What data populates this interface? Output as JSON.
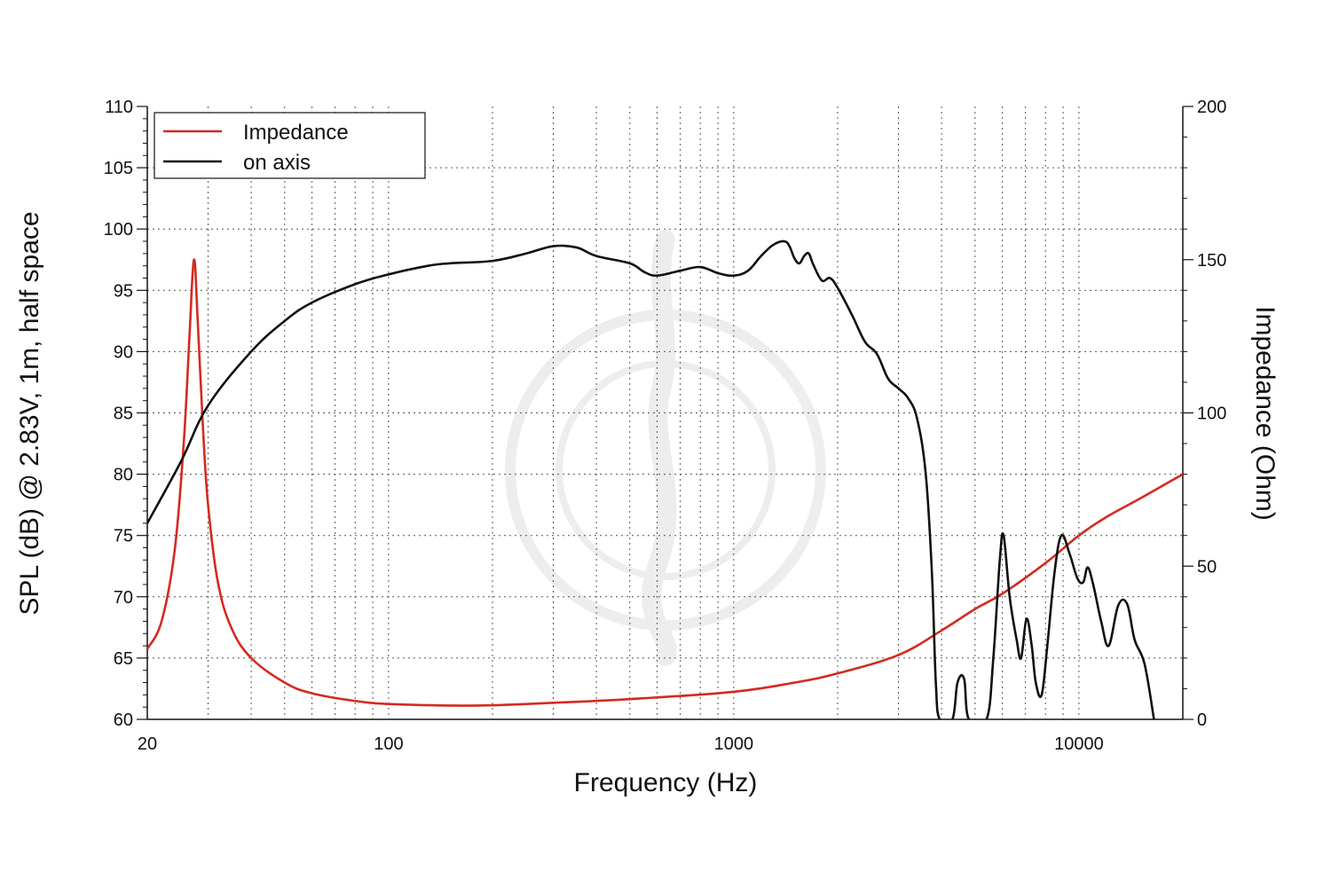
{
  "chart_data": {
    "type": "line",
    "xlabel": "Frequency (Hz)",
    "ylabel_left": "SPL (dB) @ 2.83V, 1m, half space",
    "ylabel_right": "Impedance (Ohm)",
    "x_scale": "log",
    "xlim": [
      20,
      20000
    ],
    "ylim_left": [
      60,
      110
    ],
    "ylim_right": [
      0,
      200
    ],
    "x_tick_labels": [
      "20",
      "100",
      "1000",
      "10000"
    ],
    "y_left_tick_labels": [
      "60",
      "65",
      "70",
      "75",
      "80",
      "85",
      "90",
      "95",
      "100",
      "105",
      "110"
    ],
    "y_right_tick_labels": [
      "0",
      "50",
      "100",
      "150",
      "200"
    ],
    "grid": true,
    "legend_position": "top-left",
    "series": [
      {
        "name": "Impedance",
        "axis": "right",
        "color": "#d42a1f",
        "points": [
          [
            20,
            23
          ],
          [
            22,
            32
          ],
          [
            24,
            55
          ],
          [
            25.5,
            90
          ],
          [
            26.5,
            125
          ],
          [
            27.3,
            150
          ],
          [
            28,
            130
          ],
          [
            29,
            95
          ],
          [
            30,
            70
          ],
          [
            32,
            45
          ],
          [
            35,
            30
          ],
          [
            40,
            20
          ],
          [
            50,
            12
          ],
          [
            60,
            8.5
          ],
          [
            80,
            6
          ],
          [
            100,
            5
          ],
          [
            150,
            4.5
          ],
          [
            200,
            4.6
          ],
          [
            300,
            5.4
          ],
          [
            500,
            6.6
          ],
          [
            1000,
            9
          ],
          [
            1500,
            12
          ],
          [
            2000,
            15
          ],
          [
            3000,
            21
          ],
          [
            4000,
            29
          ],
          [
            5000,
            36
          ],
          [
            6000,
            41
          ],
          [
            8000,
            51
          ],
          [
            10000,
            60
          ],
          [
            12000,
            66
          ],
          [
            15000,
            72
          ],
          [
            20000,
            80
          ]
        ]
      },
      {
        "name": "on axis",
        "axis": "left",
        "color": "#111111",
        "points": [
          [
            20,
            76
          ],
          [
            25,
            81
          ],
          [
            30,
            85.6
          ],
          [
            40,
            90
          ],
          [
            50,
            92.5
          ],
          [
            60,
            94
          ],
          [
            80,
            95.5
          ],
          [
            100,
            96.3
          ],
          [
            130,
            97
          ],
          [
            150,
            97.2
          ],
          [
            200,
            97.4
          ],
          [
            250,
            98
          ],
          [
            300,
            98.6
          ],
          [
            350,
            98.5
          ],
          [
            400,
            97.8
          ],
          [
            500,
            97.2
          ],
          [
            550,
            96.5
          ],
          [
            600,
            96.2
          ],
          [
            700,
            96.6
          ],
          [
            800,
            96.9
          ],
          [
            900,
            96.4
          ],
          [
            1000,
            96.2
          ],
          [
            1100,
            96.6
          ],
          [
            1200,
            97.8
          ],
          [
            1300,
            98.7
          ],
          [
            1400,
            99
          ],
          [
            1450,
            98.6
          ],
          [
            1500,
            97.6
          ],
          [
            1550,
            97.2
          ],
          [
            1600,
            97.8
          ],
          [
            1650,
            98
          ],
          [
            1700,
            97.1
          ],
          [
            1800,
            95.8
          ],
          [
            1900,
            96
          ],
          [
            2000,
            95.2
          ],
          [
            2200,
            93
          ],
          [
            2400,
            90.8
          ],
          [
            2600,
            89.8
          ],
          [
            2800,
            87.8
          ],
          [
            3000,
            87
          ],
          [
            3200,
            86.2
          ],
          [
            3400,
            84.5
          ],
          [
            3600,
            80
          ],
          [
            3750,
            72
          ],
          [
            3850,
            63
          ],
          [
            3950,
            60
          ],
          [
            4300,
            60
          ],
          [
            4450,
            63
          ],
          [
            4650,
            63.3
          ],
          [
            4800,
            60
          ],
          [
            5400,
            60
          ],
          [
            5650,
            65
          ],
          [
            5900,
            73
          ],
          [
            6050,
            75
          ],
          [
            6300,
            70
          ],
          [
            6600,
            66.5
          ],
          [
            6800,
            65
          ],
          [
            7050,
            68.2
          ],
          [
            7300,
            66
          ],
          [
            7500,
            63
          ],
          [
            7800,
            62
          ],
          [
            8100,
            66
          ],
          [
            8500,
            72
          ],
          [
            8900,
            75
          ],
          [
            9400,
            73.5
          ],
          [
            9900,
            71.5
          ],
          [
            10300,
            71.2
          ],
          [
            10600,
            72.4
          ],
          [
            11000,
            71
          ],
          [
            11600,
            68
          ],
          [
            12200,
            66
          ],
          [
            13000,
            69.3
          ],
          [
            13800,
            69.4
          ],
          [
            14500,
            66.5
          ],
          [
            15500,
            64.5
          ],
          [
            16500,
            60
          ]
        ]
      }
    ]
  },
  "colors": {
    "impedance": "#d42a1f",
    "on_axis": "#111111",
    "grid": "#555555",
    "watermark": "#ececec"
  }
}
